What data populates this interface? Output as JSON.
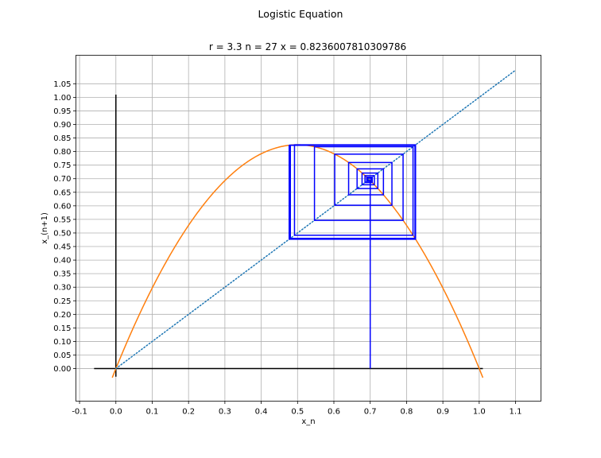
{
  "figure": {
    "suptitle": "Logistic Equation"
  },
  "chart_data": {
    "type": "line",
    "title": "r = 3.3 n = 27 x = 0.8236007810309786",
    "xlabel": "x_n",
    "ylabel": "x_(n+1)",
    "xlim": [
      -0.11,
      1.17
    ],
    "ylim": [
      -0.12,
      1.155
    ],
    "grid": true,
    "r": 3.3,
    "n": 27,
    "x0": 0.7,
    "x_final": 0.8236007810309786,
    "xticks": [
      "-0.1",
      "0.0",
      "0.1",
      "0.2",
      "0.3",
      "0.4",
      "0.5",
      "0.6",
      "0.7",
      "0.8",
      "0.9",
      "1.0",
      "1.1"
    ],
    "yticks": [
      "0.00",
      "0.05",
      "0.10",
      "0.15",
      "0.20",
      "0.25",
      "0.30",
      "0.35",
      "0.40",
      "0.45",
      "0.50",
      "0.55",
      "0.60",
      "0.65",
      "0.70",
      "0.75",
      "0.80",
      "0.85",
      "0.90",
      "0.95",
      "1.00",
      "1.05"
    ],
    "parabola": {
      "x_range": [
        -0.01,
        1.01
      ],
      "color": "#ff7f0e"
    },
    "identity_line": {
      "x_range": [
        0.0,
        1.1
      ],
      "color": "#1f77b4",
      "style": "dotted"
    },
    "x_axis_line": {
      "x_range": [
        -0.06,
        1.01
      ],
      "y": 0.0,
      "color": "#000000"
    },
    "y_axis_line": {
      "x": 0.0,
      "y_range": [
        -0.03,
        1.01
      ],
      "color": "#000000"
    },
    "cobweb": {
      "color": "#0000ff",
      "start_y": 0.0
    }
  }
}
